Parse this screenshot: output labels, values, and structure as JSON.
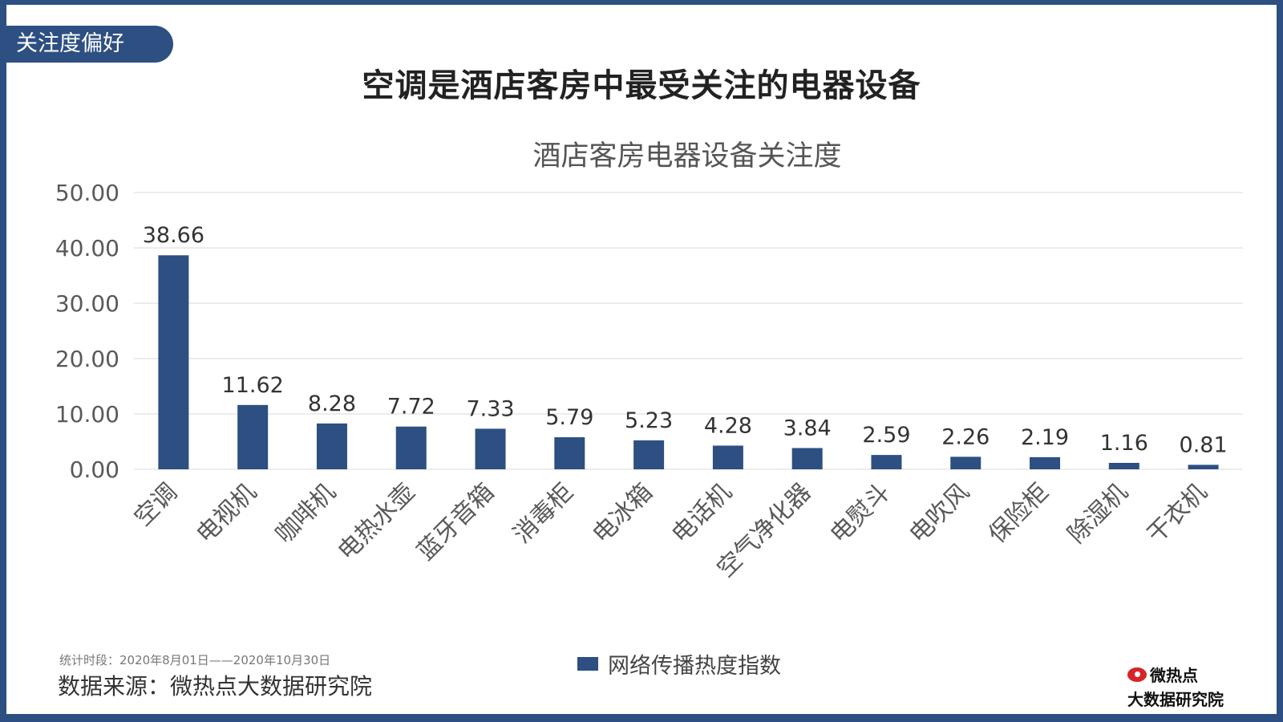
{
  "header": {
    "section_tag": "关注度偏好",
    "title": "空调是酒店客房中最受关注的电器设备"
  },
  "footer": {
    "period_note": "统计时段：2020年8月01日——2020年10月30日",
    "source": "数据来源：微热点大数据研究院",
    "logo_name": "微热点",
    "logo_sub": "大数据研究院"
  },
  "colors": {
    "bar": "#2d4f82",
    "grid": "#d9d9d9",
    "axis_text": "#595959"
  },
  "chart_data": {
    "type": "bar",
    "title": "酒店客房电器设备关注度",
    "categories": [
      "空调",
      "电视机",
      "咖啡机",
      "电热水壶",
      "蓝牙音箱",
      "消毒柜",
      "电冰箱",
      "电话机",
      "空气净化器",
      "电熨斗",
      "电吹风",
      "保险柜",
      "除湿机",
      "干衣机"
    ],
    "series": [
      {
        "name": "网络传播热度指数",
        "values": [
          38.66,
          11.62,
          8.28,
          7.72,
          7.33,
          5.79,
          5.23,
          4.28,
          3.84,
          2.59,
          2.26,
          2.19,
          1.16,
          0.81
        ]
      }
    ],
    "yticks": [
      "0.00",
      "10.00",
      "20.00",
      "30.00",
      "40.00",
      "50.00"
    ],
    "ylim": [
      0,
      50
    ],
    "legend": "bottom-center",
    "xlabel": "",
    "ylabel": ""
  }
}
